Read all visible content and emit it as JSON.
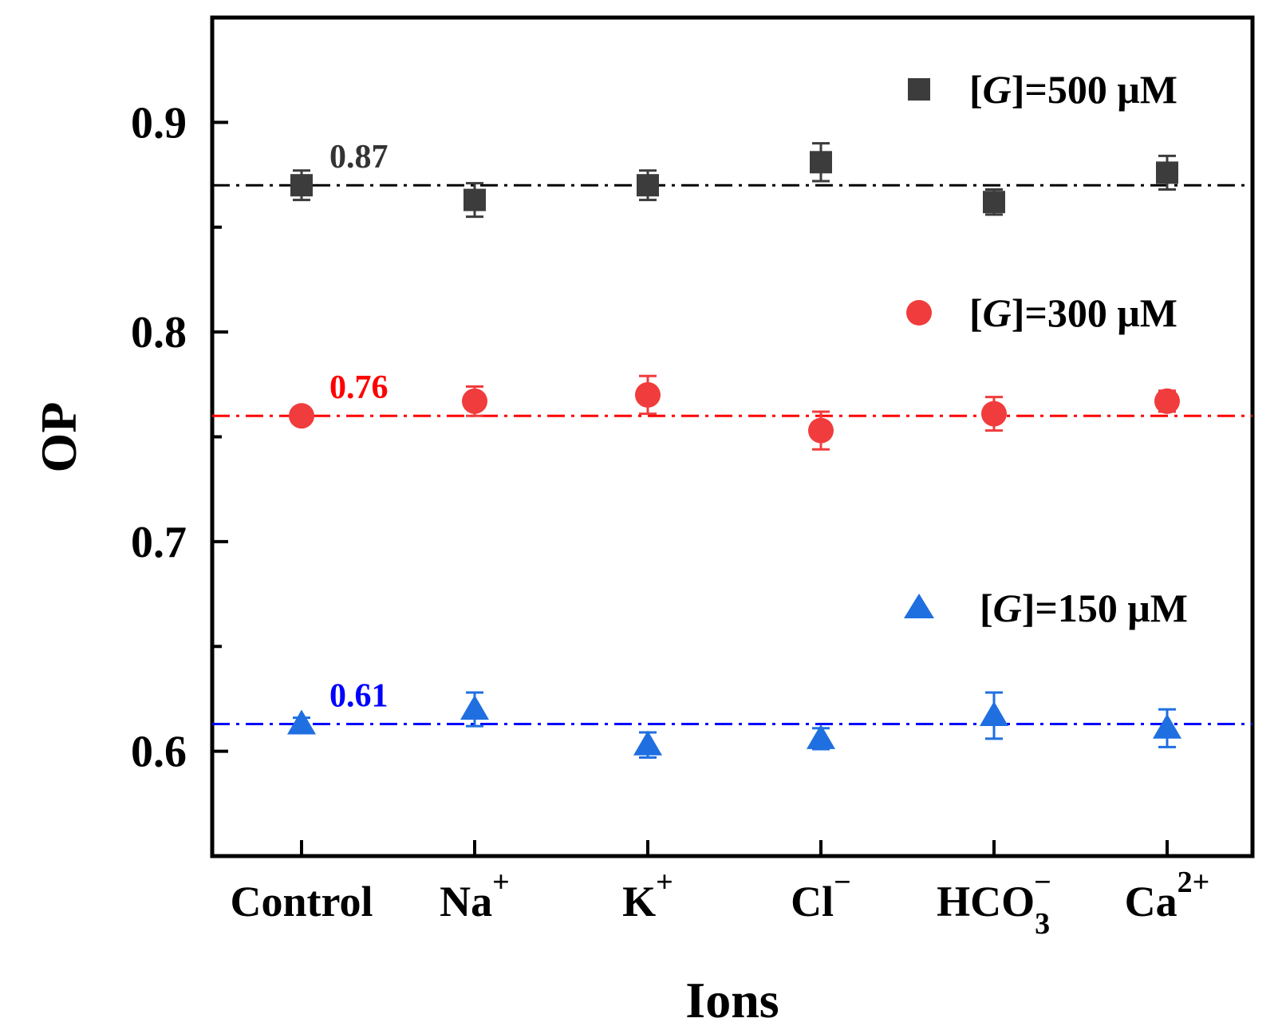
{
  "chart_data": {
    "type": "scatter",
    "xlabel": "Ions",
    "ylabel": "OP",
    "ylim": [
      0.55,
      0.95
    ],
    "yticks": [
      "0.6",
      "0.7",
      "0.8",
      "0.9"
    ],
    "categories": [
      {
        "base": "Control",
        "sup": "",
        "sub": ""
      },
      {
        "base": "Na",
        "sup": "+",
        "sub": ""
      },
      {
        "base": "K",
        "sup": "+",
        "sub": ""
      },
      {
        "base": "Cl",
        "sup": "−",
        "sub": ""
      },
      {
        "base": "HCO",
        "sup": "−",
        "sub": "3"
      },
      {
        "base": "Ca",
        "sup": "2+",
        "sub": ""
      }
    ],
    "series": [
      {
        "name": "[G]=500 μM",
        "legend_prefix": "[",
        "legend_italic": "G",
        "legend_suffix": "]=500 μM",
        "marker": "square",
        "color": "#3c3c3c",
        "values": [
          0.87,
          0.863,
          0.87,
          0.881,
          0.862,
          0.876
        ],
        "errors": [
          0.007,
          0.008,
          0.007,
          0.009,
          0.006,
          0.008
        ],
        "reference": 0.87,
        "reference_label": "0.87",
        "reference_color": "#000000",
        "label_color": "#333333"
      },
      {
        "name": "[G]=300 μM",
        "legend_prefix": "[",
        "legend_italic": "G",
        "legend_suffix": "]=300 μM",
        "marker": "circle",
        "color": "#f03c3c",
        "values": [
          0.76,
          0.767,
          0.77,
          0.753,
          0.761,
          0.767
        ],
        "errors": [
          0.003,
          0.007,
          0.009,
          0.009,
          0.008,
          0.005
        ],
        "reference": 0.76,
        "reference_label": "0.76",
        "reference_color": "#ff0000",
        "label_color": "#ff0000"
      },
      {
        "name": "[G]=150 μM",
        "legend_prefix": "[",
        "legend_italic": "G",
        "legend_suffix": "]=150 μM",
        "marker": "triangle",
        "color": "#1f6fe0",
        "values": [
          0.613,
          0.62,
          0.603,
          0.606,
          0.617,
          0.611
        ],
        "errors": [
          0.003,
          0.008,
          0.006,
          0.005,
          0.011,
          0.009
        ],
        "reference": 0.613,
        "reference_label": "0.61",
        "reference_color": "#0000ff",
        "label_color": "#0000ff"
      }
    ],
    "legend_position": "right"
  }
}
